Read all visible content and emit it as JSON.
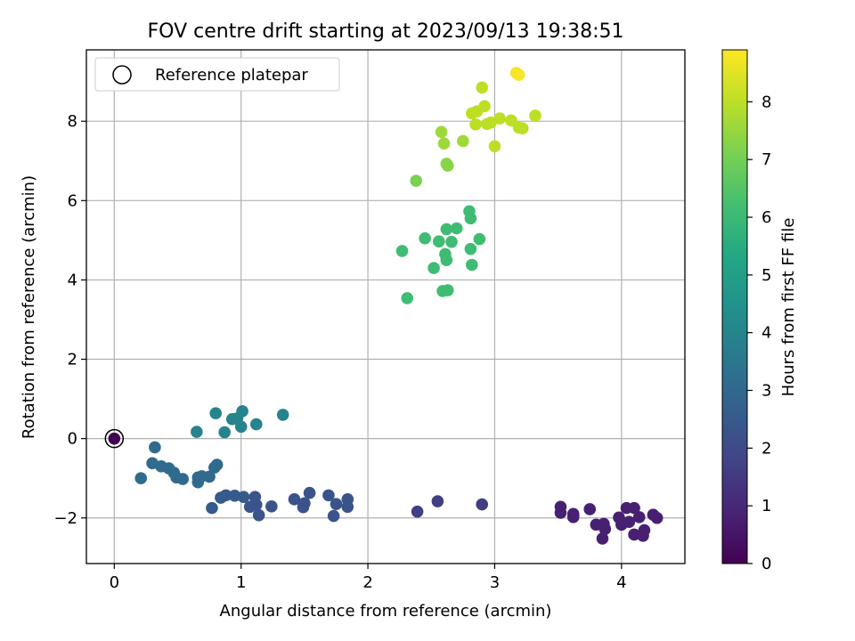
{
  "chart_data": {
    "type": "scatter",
    "title": "FOV centre drift starting at 2023/09/13 19:38:51",
    "xlabel": "Angular distance from reference (arcmin)",
    "ylabel": "Rotation from reference (arcmin)",
    "xlim": [
      -0.22,
      4.5
    ],
    "ylim": [
      -3.15,
      9.8
    ],
    "xticks": [
      0,
      1,
      2,
      3,
      4
    ],
    "yticks": [
      -2,
      0,
      2,
      4,
      6,
      8
    ],
    "xtick_labels": [
      "0",
      "1",
      "2",
      "3",
      "4"
    ],
    "ytick_labels": [
      "−2",
      "0",
      "2",
      "4",
      "6",
      "8"
    ],
    "grid": true,
    "legend": {
      "position": "top-left",
      "entries": [
        "Reference platepar"
      ]
    },
    "colorbar": {
      "label": "Hours from first FF file",
      "colormap": "viridis",
      "range": [
        0,
        8.9
      ],
      "ticks": [
        0,
        1,
        2,
        3,
        4,
        5,
        6,
        7,
        8
      ],
      "tick_labels": [
        "0",
        "1",
        "2",
        "3",
        "4",
        "5",
        "6",
        "7",
        "8"
      ]
    },
    "reference": {
      "x": 0.0,
      "y": 0.0,
      "hours": 0.0
    },
    "points": [
      {
        "x": 3.52,
        "y": -1.72,
        "h": 0.8
      },
      {
        "x": 3.52,
        "y": -1.87,
        "h": 0.8
      },
      {
        "x": 3.62,
        "y": -1.9,
        "h": 0.8
      },
      {
        "x": 3.62,
        "y": -1.98,
        "h": 0.8
      },
      {
        "x": 3.75,
        "y": -1.78,
        "h": 0.8
      },
      {
        "x": 3.8,
        "y": -2.17,
        "h": 0.8
      },
      {
        "x": 3.85,
        "y": -2.52,
        "h": 0.8
      },
      {
        "x": 3.86,
        "y": -2.15,
        "h": 0.8
      },
      {
        "x": 3.87,
        "y": -2.28,
        "h": 0.8
      },
      {
        "x": 3.98,
        "y": -1.99,
        "h": 0.8
      },
      {
        "x": 4.0,
        "y": -2.17,
        "h": 0.8
      },
      {
        "x": 4.04,
        "y": -1.75,
        "h": 0.8
      },
      {
        "x": 4.06,
        "y": -2.1,
        "h": 0.8
      },
      {
        "x": 4.1,
        "y": -1.75,
        "h": 0.8
      },
      {
        "x": 4.1,
        "y": -2.42,
        "h": 0.8
      },
      {
        "x": 4.14,
        "y": -1.98,
        "h": 0.8
      },
      {
        "x": 4.17,
        "y": -2.45,
        "h": 0.8
      },
      {
        "x": 4.18,
        "y": -2.31,
        "h": 0.8
      },
      {
        "x": 4.25,
        "y": -1.92,
        "h": 0.8
      },
      {
        "x": 4.28,
        "y": -2.0,
        "h": 0.8
      },
      {
        "x": 2.39,
        "y": -1.84,
        "h": 1.6
      },
      {
        "x": 2.55,
        "y": -1.58,
        "h": 1.6
      },
      {
        "x": 2.9,
        "y": -1.66,
        "h": 1.6
      },
      {
        "x": 1.84,
        "y": -1.53,
        "h": 2.3
      },
      {
        "x": 1.84,
        "y": -1.72,
        "h": 2.3
      },
      {
        "x": 1.75,
        "y": -1.65,
        "h": 2.3
      },
      {
        "x": 1.73,
        "y": -1.95,
        "h": 2.3
      },
      {
        "x": 1.69,
        "y": -1.43,
        "h": 2.3
      },
      {
        "x": 1.54,
        "y": -1.37,
        "h": 2.3
      },
      {
        "x": 1.5,
        "y": -1.63,
        "h": 2.3
      },
      {
        "x": 1.49,
        "y": -1.73,
        "h": 2.3
      },
      {
        "x": 1.42,
        "y": -1.53,
        "h": 2.3
      },
      {
        "x": 1.24,
        "y": -1.71,
        "h": 2.3
      },
      {
        "x": 1.14,
        "y": -1.93,
        "h": 2.3
      },
      {
        "x": 1.12,
        "y": -1.67,
        "h": 2.3
      },
      {
        "x": 1.11,
        "y": -1.47,
        "h": 2.3
      },
      {
        "x": 1.07,
        "y": -1.72,
        "h": 2.3
      },
      {
        "x": 1.02,
        "y": -1.47,
        "h": 2.5
      },
      {
        "x": 0.95,
        "y": -1.44,
        "h": 2.5
      },
      {
        "x": 0.88,
        "y": -1.43,
        "h": 2.5
      },
      {
        "x": 0.84,
        "y": -1.49,
        "h": 2.5
      },
      {
        "x": 0.77,
        "y": -1.75,
        "h": 2.5
      },
      {
        "x": 0.81,
        "y": -0.66,
        "h": 3.1
      },
      {
        "x": 0.79,
        "y": -0.73,
        "h": 3.1
      },
      {
        "x": 0.75,
        "y": -0.96,
        "h": 3.1
      },
      {
        "x": 0.69,
        "y": -0.95,
        "h": 3.1
      },
      {
        "x": 0.66,
        "y": -0.98,
        "h": 3.1
      },
      {
        "x": 0.66,
        "y": -1.1,
        "h": 3.1
      },
      {
        "x": 0.54,
        "y": -1.02,
        "h": 3.1
      },
      {
        "x": 0.49,
        "y": -0.98,
        "h": 3.1
      },
      {
        "x": 0.47,
        "y": -0.86,
        "h": 3.1
      },
      {
        "x": 0.43,
        "y": -0.75,
        "h": 3.1
      },
      {
        "x": 0.37,
        "y": -0.7,
        "h": 3.1
      },
      {
        "x": 0.3,
        "y": -0.62,
        "h": 3.1
      },
      {
        "x": 0.32,
        "y": -0.22,
        "h": 3.1
      },
      {
        "x": 0.21,
        "y": -1.0,
        "h": 3.1
      },
      {
        "x": 0.65,
        "y": 0.17,
        "h": 4.0
      },
      {
        "x": 0.8,
        "y": 0.64,
        "h": 4.0
      },
      {
        "x": 0.87,
        "y": 0.16,
        "h": 4.0
      },
      {
        "x": 0.93,
        "y": 0.49,
        "h": 4.0
      },
      {
        "x": 0.97,
        "y": 0.51,
        "h": 4.0
      },
      {
        "x": 1.0,
        "y": 0.3,
        "h": 4.0
      },
      {
        "x": 1.01,
        "y": 0.69,
        "h": 4.0
      },
      {
        "x": 1.12,
        "y": 0.36,
        "h": 4.0
      },
      {
        "x": 1.33,
        "y": 0.6,
        "h": 4.0
      },
      {
        "x": 2.31,
        "y": 3.54,
        "h": 6.1
      },
      {
        "x": 2.27,
        "y": 4.73,
        "h": 6.1
      },
      {
        "x": 2.45,
        "y": 5.05,
        "h": 6.1
      },
      {
        "x": 2.52,
        "y": 4.3,
        "h": 6.1
      },
      {
        "x": 2.56,
        "y": 4.97,
        "h": 6.1
      },
      {
        "x": 2.59,
        "y": 3.72,
        "h": 6.1
      },
      {
        "x": 2.61,
        "y": 4.65,
        "h": 6.1
      },
      {
        "x": 2.62,
        "y": 4.5,
        "h": 6.1
      },
      {
        "x": 2.62,
        "y": 5.28,
        "h": 6.1
      },
      {
        "x": 2.63,
        "y": 3.74,
        "h": 6.1
      },
      {
        "x": 2.66,
        "y": 4.96,
        "h": 6.1
      },
      {
        "x": 2.7,
        "y": 5.3,
        "h": 6.1
      },
      {
        "x": 2.8,
        "y": 5.73,
        "h": 6.1
      },
      {
        "x": 2.81,
        "y": 5.55,
        "h": 6.1
      },
      {
        "x": 2.81,
        "y": 4.78,
        "h": 6.1
      },
      {
        "x": 2.82,
        "y": 4.38,
        "h": 6.1
      },
      {
        "x": 2.88,
        "y": 5.03,
        "h": 6.1
      },
      {
        "x": 2.38,
        "y": 6.5,
        "h": 7.1
      },
      {
        "x": 2.62,
        "y": 6.93,
        "h": 7.3
      },
      {
        "x": 2.63,
        "y": 6.88,
        "h": 7.3
      },
      {
        "x": 2.6,
        "y": 7.44,
        "h": 7.6
      },
      {
        "x": 2.58,
        "y": 7.73,
        "h": 7.6
      },
      {
        "x": 2.75,
        "y": 7.5,
        "h": 7.6
      },
      {
        "x": 2.82,
        "y": 8.2,
        "h": 8.0
      },
      {
        "x": 2.85,
        "y": 7.92,
        "h": 8.0
      },
      {
        "x": 2.86,
        "y": 8.25,
        "h": 8.0
      },
      {
        "x": 2.9,
        "y": 8.85,
        "h": 8.0
      },
      {
        "x": 2.92,
        "y": 8.38,
        "h": 8.0
      },
      {
        "x": 2.94,
        "y": 7.93,
        "h": 8.0
      },
      {
        "x": 2.97,
        "y": 7.97,
        "h": 8.0
      },
      {
        "x": 3.0,
        "y": 7.37,
        "h": 8.0
      },
      {
        "x": 3.04,
        "y": 8.07,
        "h": 8.0
      },
      {
        "x": 3.13,
        "y": 8.02,
        "h": 8.0
      },
      {
        "x": 3.19,
        "y": 7.84,
        "h": 8.0
      },
      {
        "x": 3.22,
        "y": 7.82,
        "h": 8.0
      },
      {
        "x": 3.32,
        "y": 8.14,
        "h": 8.0
      },
      {
        "x": 3.17,
        "y": 9.22,
        "h": 8.8
      },
      {
        "x": 3.19,
        "y": 9.17,
        "h": 8.8
      }
    ]
  }
}
